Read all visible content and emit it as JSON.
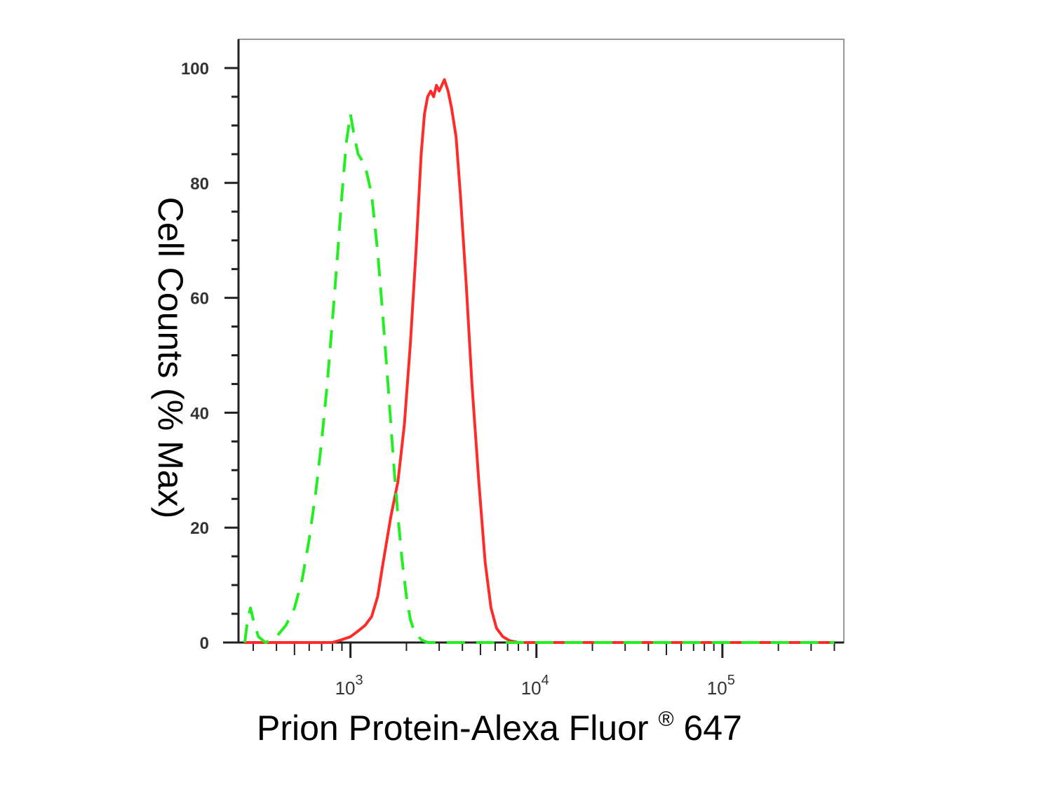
{
  "chart_data": {
    "type": "line",
    "title": "",
    "xlabel": "Prion Protein-Alexa Fluor",
    "xlabel_superscript": "®",
    "xlabel_suffix": " 647",
    "ylabel": "Cell Counts (% Max)",
    "x_scale": "log",
    "xlim": [
      250,
      450000
    ],
    "ylim": [
      0,
      100
    ],
    "y_ticks": [
      0,
      20,
      40,
      60,
      80,
      100
    ],
    "y_tick_labels": [
      "0",
      "20",
      "40",
      "60",
      "80",
      "100"
    ],
    "x_decade_ticks": [
      {
        "value": 1000,
        "base": "10",
        "exp": "3"
      },
      {
        "value": 10000,
        "base": "10",
        "exp": "4"
      },
      {
        "value": 100000,
        "base": "10",
        "exp": "5"
      }
    ],
    "grid": false,
    "legend": "none",
    "series": [
      {
        "color": "#ff2a2a",
        "style": "solid",
        "points": [
          [
            270,
            0
          ],
          [
            800,
            0
          ],
          [
            900,
            0.5
          ],
          [
            1000,
            1
          ],
          [
            1100,
            2
          ],
          [
            1200,
            3
          ],
          [
            1300,
            4.5
          ],
          [
            1400,
            8
          ],
          [
            1500,
            14
          ],
          [
            1650,
            22
          ],
          [
            1800,
            28
          ],
          [
            1950,
            38
          ],
          [
            2100,
            52
          ],
          [
            2250,
            68
          ],
          [
            2400,
            85
          ],
          [
            2500,
            92
          ],
          [
            2600,
            95
          ],
          [
            2700,
            96
          ],
          [
            2800,
            95
          ],
          [
            2900,
            97
          ],
          [
            3000,
            96
          ],
          [
            3100,
            97
          ],
          [
            3200,
            98
          ],
          [
            3350,
            96
          ],
          [
            3500,
            93
          ],
          [
            3700,
            88
          ],
          [
            3900,
            78
          ],
          [
            4200,
            62
          ],
          [
            4500,
            45
          ],
          [
            4900,
            28
          ],
          [
            5300,
            14
          ],
          [
            5700,
            6
          ],
          [
            6100,
            2.5
          ],
          [
            6600,
            1
          ],
          [
            7200,
            0.3
          ],
          [
            8000,
            0
          ],
          [
            400000,
            0
          ]
        ]
      },
      {
        "color": "#22ee22",
        "style": "dashed",
        "points": [
          [
            270,
            0
          ],
          [
            280,
            4
          ],
          [
            290,
            6
          ],
          [
            300,
            4
          ],
          [
            320,
            1
          ],
          [
            350,
            0
          ],
          [
            400,
            1
          ],
          [
            450,
            3
          ],
          [
            500,
            6
          ],
          [
            550,
            11
          ],
          [
            600,
            18
          ],
          [
            650,
            26
          ],
          [
            700,
            35
          ],
          [
            750,
            45
          ],
          [
            800,
            56
          ],
          [
            850,
            67
          ],
          [
            900,
            78
          ],
          [
            950,
            87
          ],
          [
            1000,
            92
          ],
          [
            1050,
            88
          ],
          [
            1100,
            85
          ],
          [
            1150,
            84
          ],
          [
            1200,
            83
          ],
          [
            1300,
            78
          ],
          [
            1400,
            68
          ],
          [
            1500,
            56
          ],
          [
            1600,
            44
          ],
          [
            1700,
            32
          ],
          [
            1800,
            22
          ],
          [
            1900,
            14
          ],
          [
            2000,
            8
          ],
          [
            2100,
            4
          ],
          [
            2200,
            2
          ],
          [
            2400,
            0.5
          ],
          [
            2600,
            0
          ],
          [
            400000,
            0
          ]
        ]
      }
    ]
  }
}
